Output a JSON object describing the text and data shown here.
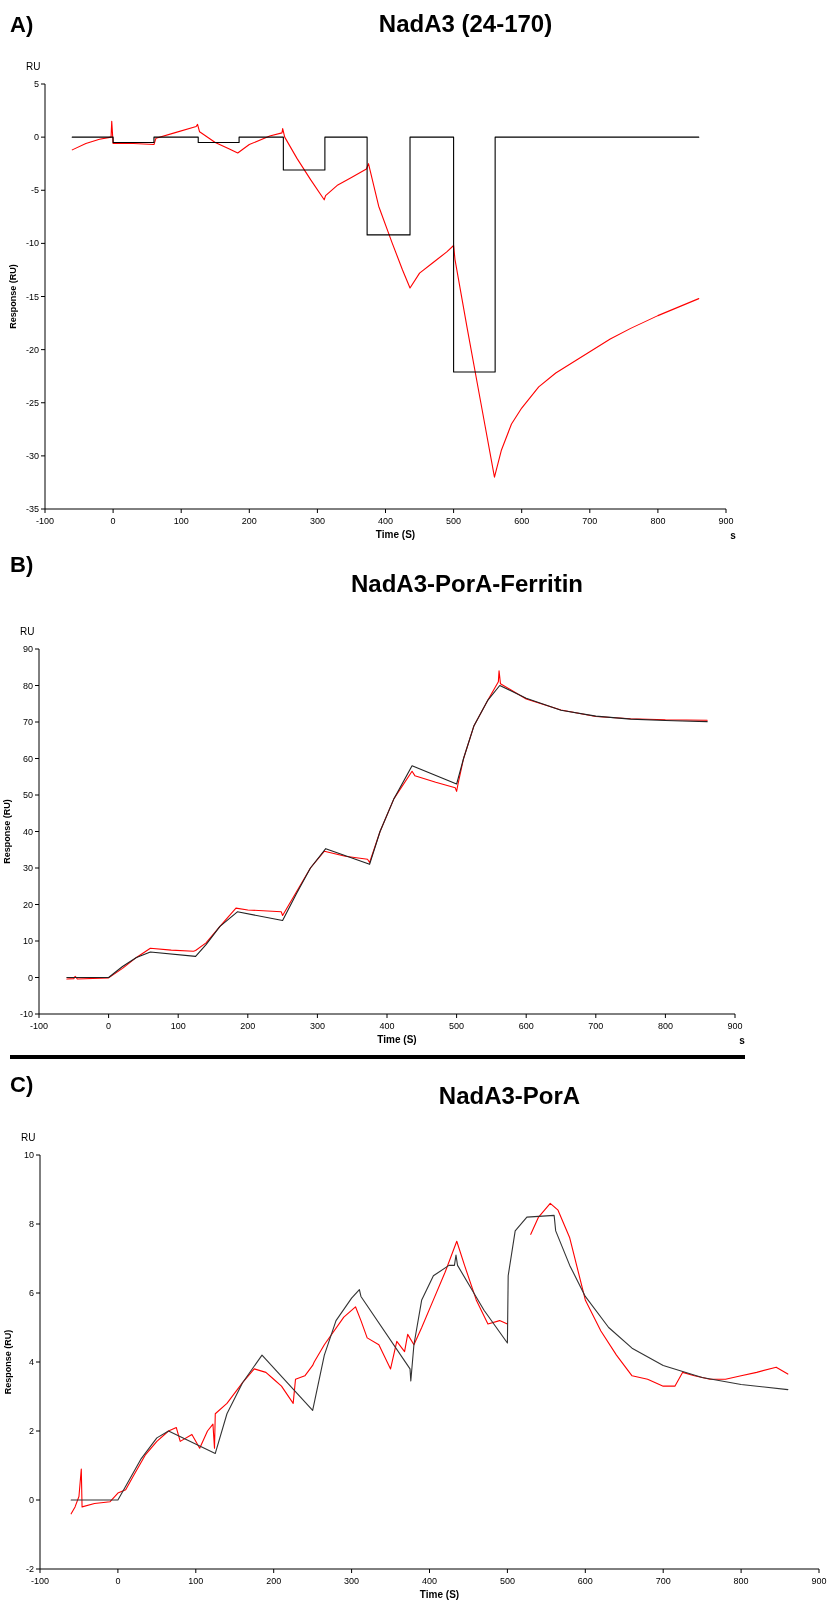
{
  "chart_data": [
    {
      "type": "line",
      "title": "NadA3 (24-170)",
      "xlabel": "Time (S)",
      "ylabel": "Response (RU)",
      "annotations": [
        "A)",
        "RU",
        "s"
      ],
      "xlim": [
        -100,
        900
      ],
      "ylim": [
        -35,
        5
      ],
      "xticks": [
        -100,
        0,
        100,
        200,
        300,
        400,
        500,
        600,
        700,
        800,
        900
      ],
      "yticks": [
        -35,
        -30,
        -25,
        -20,
        -15,
        -10,
        -5,
        0,
        5
      ],
      "grid": false,
      "series": [
        {
          "color": "#ff0000",
          "x": [
            -60,
            -40,
            -20,
            -3,
            -2,
            0,
            30,
            60,
            63,
            90,
            122,
            124,
            127,
            150,
            170,
            183,
            200,
            230,
            248,
            249,
            252,
            270,
            290,
            310,
            312,
            330,
            350,
            372,
            375,
            390,
            410,
            425,
            436,
            450,
            470,
            490,
            500,
            502,
            520,
            540,
            560,
            570,
            585,
            600,
            625,
            650,
            680,
            700,
            730,
            760,
            800,
            830,
            860
          ],
          "values": [
            -1.2,
            -0.6,
            -0.2,
            0,
            1.5,
            -0.6,
            -0.6,
            -0.7,
            -0.1,
            0.4,
            1.0,
            1.2,
            0.5,
            -0.5,
            -1.1,
            -1.5,
            -0.7,
            0.1,
            0.4,
            0.8,
            0,
            -2,
            -4,
            -5.9,
            -5.5,
            -4.5,
            -3.8,
            -3.0,
            -2.5,
            -6.5,
            -10,
            -12.5,
            -14.2,
            -12.8,
            -11.8,
            -10.8,
            -10.2,
            -11.5,
            -18,
            -25,
            -32,
            -29.5,
            -27,
            -25.5,
            -23.5,
            -22.2,
            -21.0,
            -20.2,
            -19,
            -18,
            -16.8,
            -16,
            -15.2
          ]
        },
        {
          "color": "#000000",
          "x": [
            -60,
            0,
            0,
            60,
            60,
            125,
            125,
            185,
            185,
            250,
            250,
            311,
            311,
            373,
            373,
            436,
            436,
            500,
            500,
            561,
            561,
            860
          ],
          "values": [
            0,
            0,
            -0.5,
            -0.5,
            0,
            0,
            -0.5,
            -0.5,
            0,
            0,
            -3.1,
            -3.1,
            0,
            0,
            -9.2,
            -9.2,
            0,
            0,
            -22.1,
            -22.1,
            0,
            0
          ]
        }
      ]
    },
    {
      "type": "line",
      "title": "NadA3-PorA-Ferritin",
      "xlabel": "Time (S)",
      "ylabel": "Response (RU)",
      "annotations": [
        "B)",
        "RU",
        "s"
      ],
      "xlim": [
        -100,
        900
      ],
      "ylim": [
        -10,
        90
      ],
      "xticks": [
        -100,
        0,
        100,
        200,
        300,
        400,
        500,
        600,
        700,
        800,
        900
      ],
      "yticks": [
        -10,
        0,
        10,
        20,
        30,
        40,
        50,
        60,
        70,
        80,
        90
      ],
      "grid": false,
      "series": [
        {
          "color": "#ff0000",
          "x": [
            -60,
            -50,
            -48,
            -45,
            0,
            20,
            40,
            60,
            90,
            122,
            125,
            140,
            160,
            183,
            200,
            248,
            250,
            270,
            290,
            310,
            340,
            372,
            375,
            390,
            410,
            436,
            440,
            470,
            498,
            500,
            502,
            510,
            525,
            545,
            560,
            561,
            563,
            600,
            650,
            700,
            750,
            800,
            860
          ],
          "values": [
            -0.4,
            -0.3,
            0.3,
            -0.4,
            -0.1,
            2.5,
            5.5,
            8,
            7.5,
            7.2,
            7.4,
            9.5,
            14,
            19,
            18.5,
            18,
            17,
            23.5,
            30,
            34.6,
            33.2,
            32.4,
            31.5,
            40,
            49,
            56.5,
            55.3,
            53.5,
            52,
            51,
            53,
            60,
            69,
            76,
            81,
            84,
            80.5,
            76.3,
            73.3,
            71.5,
            70.9,
            70.6,
            70.5
          ]
        },
        {
          "color": "#222222",
          "x": [
            -60,
            0,
            20,
            40,
            60,
            125,
            140,
            160,
            185,
            250,
            270,
            290,
            312,
            375,
            390,
            410,
            436,
            500,
            510,
            525,
            545,
            562,
            600,
            650,
            700,
            750,
            800,
            860
          ],
          "values": [
            0,
            0,
            3,
            5.5,
            7,
            5.8,
            9,
            14,
            18,
            15.6,
            23,
            30,
            35.3,
            31,
            40,
            49,
            58,
            53,
            60,
            69,
            76,
            80,
            76.5,
            73.2,
            71.6,
            70.8,
            70.4,
            70.1
          ]
        }
      ]
    },
    {
      "type": "line",
      "title": "NadA3-PorA",
      "xlabel": "Time (S)",
      "ylabel": "Response (RU)",
      "annotations": [
        "C)",
        "RU"
      ],
      "xlim": [
        -100,
        900
      ],
      "ylim": [
        -2,
        10
      ],
      "xticks": [
        -100,
        0,
        100,
        200,
        300,
        400,
        500,
        600,
        700,
        800,
        900
      ],
      "yticks": [
        -2,
        0,
        2,
        4,
        6,
        8,
        10
      ],
      "grid": false,
      "series": [
        {
          "color": "#ff0000",
          "x": [
            -60,
            -55,
            -50,
            -47,
            -46,
            -30,
            -10,
            0,
            10,
            20,
            35,
            50,
            65,
            75,
            80,
            95,
            105,
            115,
            122,
            124,
            125,
            140,
            160,
            175,
            190,
            200,
            210,
            225,
            228,
            240,
            250,
            252,
            265,
            290,
            305,
            312,
            320,
            335,
            350,
            358,
            368,
            372,
            380,
            390,
            405,
            420,
            435,
            445,
            460,
            475,
            490,
            500,
            505,
            530,
            540,
            555,
            565,
            580,
            600,
            620,
            640,
            660,
            680,
            700,
            715,
            725,
            740,
            760,
            780,
            800,
            820,
            845,
            860
          ],
          "values": [
            -0.4,
            -0.2,
            0.1,
            0.9,
            -0.2,
            -0.1,
            -0.05,
            0.2,
            0.3,
            0.7,
            1.3,
            1.7,
            2.0,
            2.1,
            1.7,
            1.9,
            1.5,
            2.0,
            2.2,
            1.5,
            2.5,
            2.8,
            3.4,
            3.8,
            3.7,
            3.5,
            3.3,
            2.8,
            3.5,
            3.6,
            3.9,
            4.0,
            4.5,
            5.3,
            5.6,
            5.2,
            4.7,
            4.5,
            3.8,
            4.6,
            4.3,
            4.8,
            4.5,
            5.0,
            5.8,
            6.6,
            7.5,
            6.8,
            5.8,
            5.1,
            5.2,
            5.1,
            null,
            7.7,
            8.2,
            8.6,
            8.4,
            7.6,
            5.8,
            4.9,
            4.2,
            3.6,
            3.5,
            3.3,
            3.3,
            3.7,
            3.6,
            3.5,
            3.5,
            3.6,
            3.7,
            3.85,
            3.65
          ]
        },
        {
          "color": "#333333",
          "x": [
            -60,
            0,
            10,
            30,
            50,
            65,
            125,
            140,
            160,
            185,
            250,
            265,
            280,
            300,
            310,
            312,
            375,
            376,
            380,
            390,
            405,
            425,
            432,
            434,
            436,
            470,
            500,
            501,
            510,
            525,
            560,
            562,
            580,
            600,
            630,
            660,
            700,
            750,
            800,
            860
          ],
          "values": [
            0,
            0,
            0.4,
            1.2,
            1.8,
            2.0,
            1.35,
            2.5,
            3.4,
            4.2,
            2.6,
            4.2,
            5.2,
            5.85,
            6.1,
            5.9,
            3.8,
            3.45,
            4.5,
            5.8,
            6.5,
            6.8,
            6.8,
            7.1,
            6.8,
            5.5,
            4.55,
            6.5,
            7.8,
            8.2,
            8.25,
            7.8,
            6.8,
            5.9,
            5.0,
            4.4,
            3.9,
            3.55,
            3.35,
            3.2
          ]
        }
      ]
    }
  ]
}
